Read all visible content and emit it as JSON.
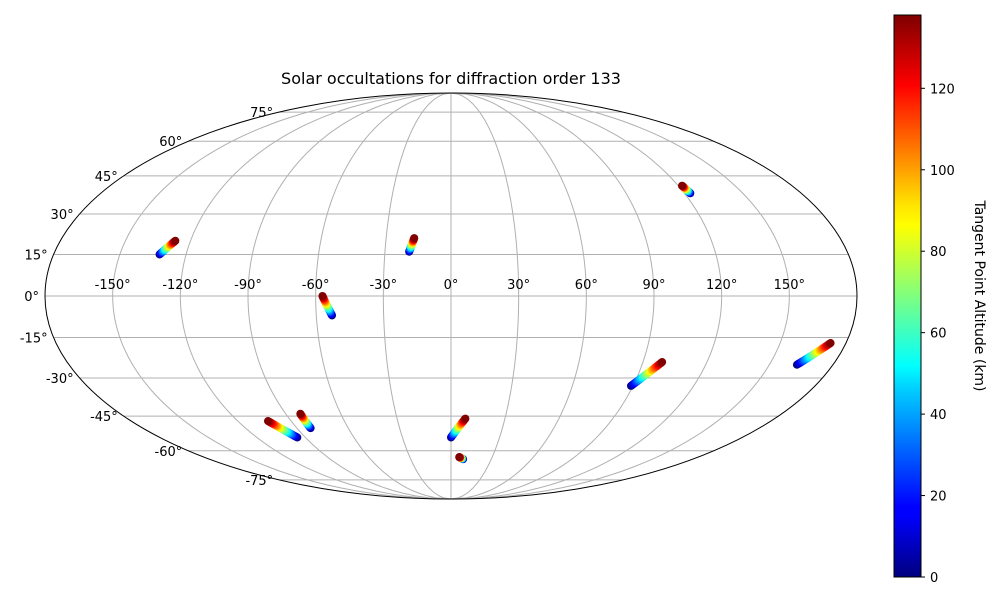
{
  "chart_data": {
    "type": "scatter",
    "projection": "mollweide",
    "title": "Solar occultations for diffraction order 133",
    "grid": true,
    "x_ticks": [
      "-150°",
      "-120°",
      "-90°",
      "-60°",
      "-30°",
      "0°",
      "30°",
      "60°",
      "90°",
      "120°",
      "150°"
    ],
    "y_ticks": [
      "75°",
      "60°",
      "45°",
      "30°",
      "15°",
      "0°",
      "-15°",
      "-30°",
      "-45°",
      "-60°",
      "-75°"
    ],
    "lon_range": [
      -180,
      180
    ],
    "lat_range": [
      -90,
      90
    ],
    "colorbar": {
      "label": "Tangent Point Altitude (km)",
      "colormap": "jet",
      "range": [
        0,
        138
      ],
      "ticks": [
        "0",
        "20",
        "40",
        "60",
        "80",
        "100",
        "120"
      ]
    },
    "tracks": [
      {
        "lon_start": -132,
        "lat_start": 15,
        "alt_start": 0,
        "lon_end": -127,
        "lat_end": 20,
        "alt_end": 138
      },
      {
        "lon_start": -19,
        "lat_start": 16,
        "alt_start": 0,
        "lon_end": -17,
        "lat_end": 21,
        "alt_end": 138
      },
      {
        "lon_start": 123,
        "lat_start": 38,
        "alt_start": 0,
        "lon_end": 122,
        "lat_end": 41,
        "alt_end": 138
      },
      {
        "lon_start": -53,
        "lat_start": -7,
        "alt_start": 0,
        "lon_end": -57,
        "lat_end": 0,
        "alt_end": 138
      },
      {
        "lon_start": -95,
        "lat_start": -54,
        "alt_start": 0,
        "lon_end": -103,
        "lat_end": -47,
        "alt_end": 138
      },
      {
        "lon_start": -82,
        "lat_start": -50,
        "alt_start": 0,
        "lon_end": -82,
        "lat_end": -44,
        "alt_end": 138
      },
      {
        "lon_start": 0,
        "lat_start": -54,
        "alt_start": 0,
        "lon_end": 8,
        "lat_end": -46,
        "alt_end": 138
      },
      {
        "lon_start": 9,
        "lat_start": -64,
        "alt_start": 0,
        "lon_end": 6,
        "lat_end": -63,
        "alt_end": 138
      },
      {
        "lon_start": 89,
        "lat_start": -33,
        "alt_start": 0,
        "lon_end": 99,
        "lat_end": -24,
        "alt_end": 138
      },
      {
        "lon_start": 163,
        "lat_start": -25,
        "alt_start": 0,
        "lon_end": 173,
        "lat_end": -17,
        "alt_end": 138
      }
    ]
  }
}
